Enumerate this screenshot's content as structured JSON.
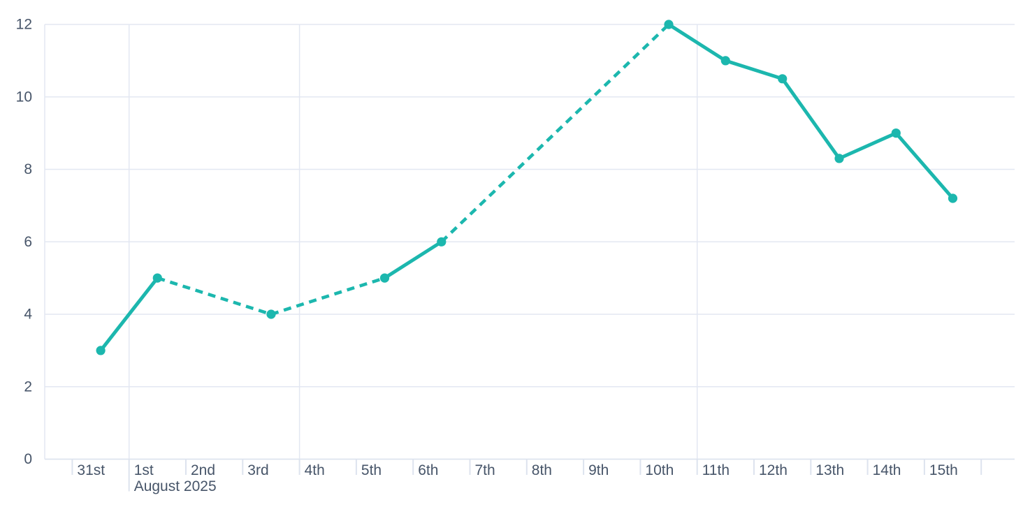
{
  "chart_data": {
    "type": "line",
    "title": "",
    "xlabel": "",
    "ylabel": "",
    "legend": "none",
    "grid": "on",
    "x_axis": {
      "categories": [
        "31st",
        "1st",
        "2nd",
        "3rd",
        "4th",
        "5th",
        "6th",
        "7th",
        "8th",
        "9th",
        "10th",
        "11th",
        "12th",
        "13th",
        "14th",
        "15th"
      ],
      "month_label": "August 2025",
      "month_label_under": "1st",
      "major_gridline_categories": [
        "1st",
        "4th",
        "11th"
      ]
    },
    "y_axis": {
      "min": 0,
      "max": 12,
      "tick_step": 2,
      "tick_labels": [
        "0",
        "2",
        "4",
        "6",
        "8",
        "10",
        "12"
      ]
    },
    "series": [
      {
        "points": [
          {
            "x": "31st",
            "y": 3
          },
          {
            "x": "1st",
            "y": 5
          },
          {
            "x": "3rd",
            "y": 4
          },
          {
            "x": "5th",
            "y": 5
          },
          {
            "x": "6th",
            "y": 6
          },
          {
            "x": "10th",
            "y": 12
          },
          {
            "x": "11th",
            "y": 11
          },
          {
            "x": "12th",
            "y": 10.5
          },
          {
            "x": "13th",
            "y": 8.3
          },
          {
            "x": "14th",
            "y": 9
          },
          {
            "x": "15th",
            "y": 7.2
          }
        ],
        "segments": [
          {
            "from": "31st",
            "to": "1st",
            "style": "solid"
          },
          {
            "from": "1st",
            "to": "3rd",
            "style": "dashed"
          },
          {
            "from": "3rd",
            "to": "5th",
            "style": "dashed"
          },
          {
            "from": "5th",
            "to": "6th",
            "style": "solid"
          },
          {
            "from": "6th",
            "to": "10th",
            "style": "dashed"
          },
          {
            "from": "10th",
            "to": "15th",
            "style": "solid"
          }
        ]
      }
    ],
    "colors": {
      "line": "#1cb7ae",
      "marker": "#1cb7ae",
      "grid": "#e3e7f2",
      "axis": "#dde3ee",
      "label": "#475569",
      "background": "#ffffff"
    }
  }
}
